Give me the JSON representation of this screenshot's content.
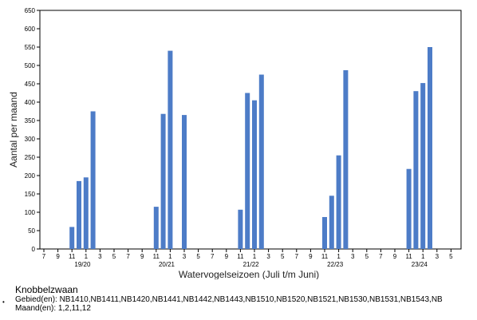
{
  "chart_data": {
    "type": "bar",
    "ylabel": "Aantal per maand",
    "xlabel": "Watervogelseizoen (Juli t/m Juni)",
    "ylim": [
      0,
      650
    ],
    "yticks": [
      0,
      50,
      100,
      150,
      200,
      250,
      300,
      350,
      400,
      450,
      500,
      550,
      600,
      650
    ],
    "month_ticks": [
      "7",
      "9",
      "11",
      "1",
      "3",
      "5"
    ],
    "bar_color": "#4d7cc7",
    "seasons": [
      {
        "label": "19/20",
        "months": [
          "11",
          "12",
          "1",
          "2"
        ],
        "values": [
          60,
          185,
          195,
          375
        ]
      },
      {
        "label": "20/21",
        "months": [
          "11",
          "12",
          "1",
          "2",
          "3"
        ],
        "values": [
          115,
          368,
          540,
          null,
          365
        ]
      },
      {
        "label": "21/22",
        "months": [
          "11",
          "12",
          "1",
          "2"
        ],
        "values": [
          107,
          425,
          405,
          475
        ]
      },
      {
        "label": "22/23",
        "months": [
          "11",
          "12",
          "1",
          "2"
        ],
        "values": [
          87,
          145,
          255,
          487
        ]
      },
      {
        "label": "23/24",
        "months": [
          "11",
          "12",
          "1",
          "2"
        ],
        "values": [
          218,
          430,
          452,
          550
        ]
      }
    ]
  },
  "caption": {
    "species": "Knobbelzwaan",
    "bullet": "•",
    "gebied": "Gebied(en): NB1410,NB1411,NB1420,NB1441,NB1442,NB1443,NB1510,NB1520,NB1521,NB1530,NB1531,NB1543,NB",
    "maand": "Maand(en): 1,2,11,12"
  }
}
